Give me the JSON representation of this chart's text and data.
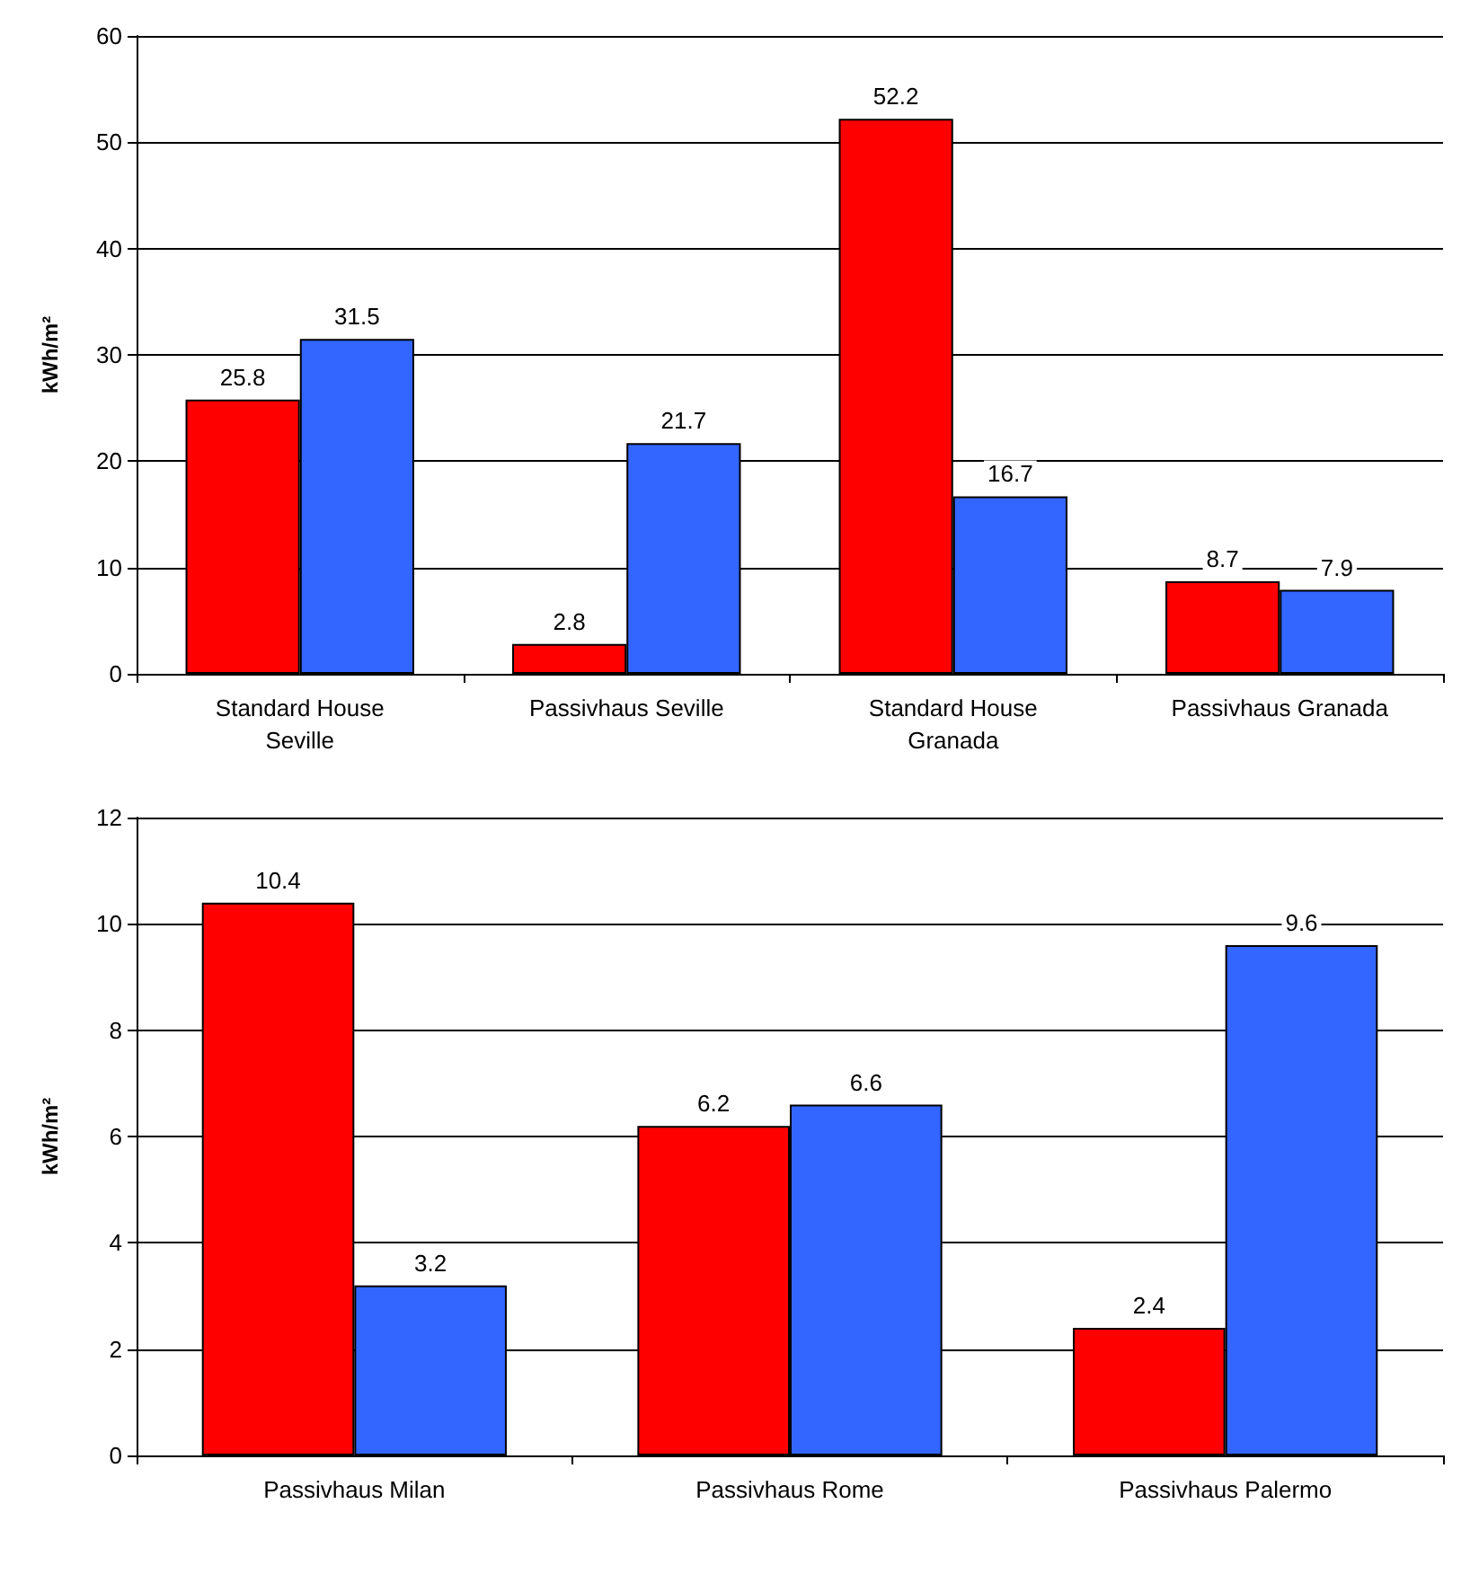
{
  "chart_data": [
    {
      "type": "bar",
      "ylabel": "kWh/m²",
      "categories": [
        "Standard House\nSeville",
        "Passivhaus Seville",
        "Standard House\nGranada",
        "Passivhaus Granada"
      ],
      "series": [
        {
          "color": "#ff0000",
          "values": [
            25.8,
            2.8,
            52.2,
            8.7
          ]
        },
        {
          "color": "#3366ff",
          "values": [
            31.5,
            21.7,
            16.7,
            7.9
          ]
        }
      ],
      "ylim": [
        0,
        60
      ],
      "yticks": [
        0,
        10,
        20,
        30,
        40,
        50,
        60
      ],
      "grid": "y",
      "data_labels": true
    },
    {
      "type": "bar",
      "ylabel": "kWh/m²",
      "categories": [
        "Passivhaus Milan",
        "Passivhaus Rome",
        "Passivhaus Palermo"
      ],
      "series": [
        {
          "color": "#ff0000",
          "values": [
            10.4,
            6.2,
            2.4
          ]
        },
        {
          "color": "#3366ff",
          "values": [
            3.2,
            6.6,
            9.6
          ]
        }
      ],
      "ylim": [
        0,
        12
      ],
      "yticks": [
        0,
        2,
        4,
        6,
        8,
        10,
        12
      ],
      "grid": "y",
      "data_labels": true
    }
  ]
}
